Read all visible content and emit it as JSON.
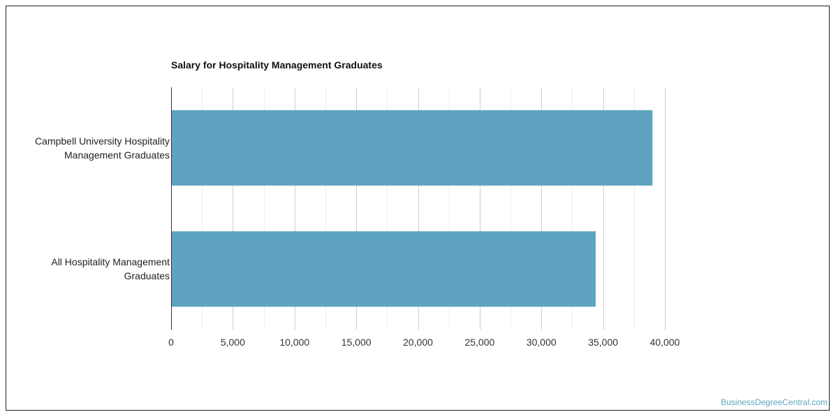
{
  "chart_data": {
    "type": "bar",
    "orientation": "horizontal",
    "title": "Salary for Hospitality Management Graduates",
    "categories": [
      "Campbell University Hospitality Management Graduates",
      "All Hospitality Management Graduates"
    ],
    "values": [
      39000,
      34400
    ],
    "xlim": [
      0,
      40000
    ],
    "x_ticks": [
      "0",
      "5,000",
      "10,000",
      "15,000",
      "20,000",
      "25,000",
      "30,000",
      "35,000",
      "40,000"
    ],
    "xlabel": "",
    "ylabel": "",
    "grid": true,
    "bar_color": "#5ea3bf"
  },
  "footer": {
    "credit": "BusinessDegreeCentral.com"
  }
}
